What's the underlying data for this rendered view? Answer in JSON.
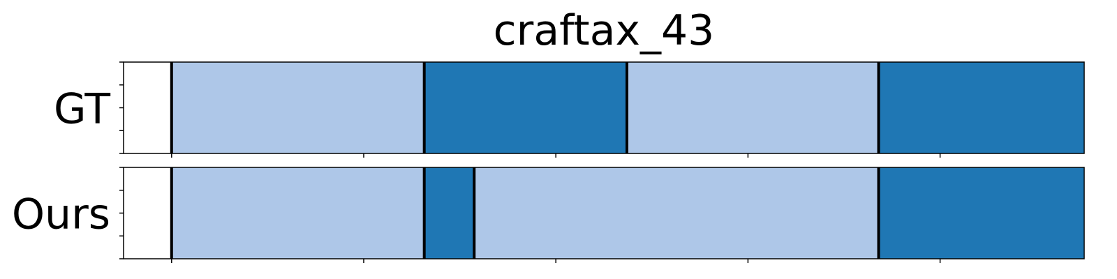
{
  "chart_data": {
    "type": "bar",
    "title": "craftax_43",
    "xlim": [
      0,
      1
    ],
    "colors": {
      "light": "#aec7e8",
      "dark": "#1f77b4",
      "boundary": "#000000"
    },
    "rows": [
      {
        "label": "GT",
        "segments": [
          {
            "start": 0.05,
            "end": 0.313,
            "color": "light"
          },
          {
            "start": 0.313,
            "end": 0.524,
            "color": "dark"
          },
          {
            "start": 0.524,
            "end": 0.786,
            "color": "light"
          },
          {
            "start": 0.786,
            "end": 1.05,
            "color": "dark"
          }
        ]
      },
      {
        "label": "Ours",
        "segments": [
          {
            "start": 0.05,
            "end": 0.313,
            "color": "light"
          },
          {
            "start": 0.313,
            "end": 0.365,
            "color": "dark"
          },
          {
            "start": 0.365,
            "end": 0.786,
            "color": "light"
          },
          {
            "start": 0.786,
            "end": 1.05,
            "color": "dark"
          }
        ]
      }
    ]
  }
}
